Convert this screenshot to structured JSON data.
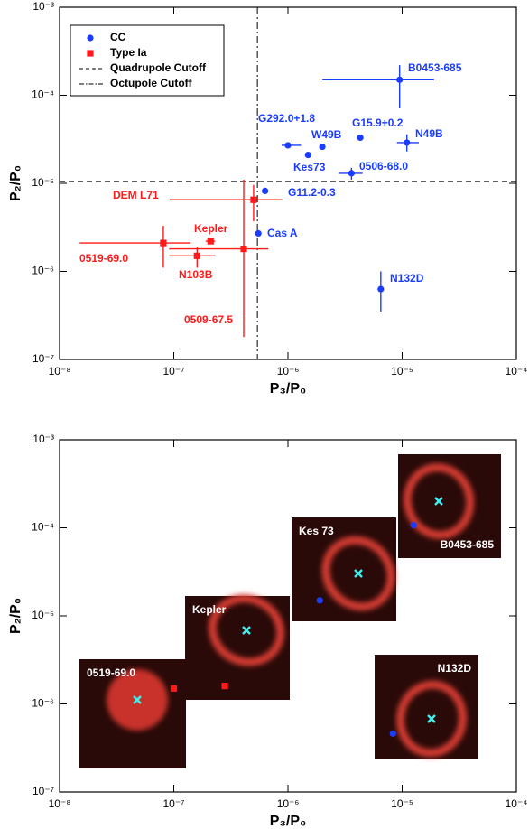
{
  "chart_data": [
    {
      "type": "scatter",
      "xlabel": "P₃/P₀",
      "ylabel": "P₂/P₀",
      "xscale": "log",
      "yscale": "log",
      "xlim": [
        1e-08,
        0.0001
      ],
      "ylim": [
        1e-07,
        0.001
      ],
      "xticks": [
        {
          "value": 1e-08,
          "label": "10⁻⁸"
        },
        {
          "value": 1e-07,
          "label": "10⁻⁷"
        },
        {
          "value": 1e-06,
          "label": "10⁻⁶"
        },
        {
          "value": 1e-05,
          "label": "10⁻⁵"
        },
        {
          "value": 0.0001,
          "label": "10⁻⁴"
        }
      ],
      "yticks": [
        {
          "value": 1e-07,
          "label": "10⁻⁷"
        },
        {
          "value": 1e-06,
          "label": "10⁻⁶"
        },
        {
          "value": 1e-05,
          "label": "10⁻⁵"
        },
        {
          "value": 0.0001,
          "label": "10⁻⁴"
        },
        {
          "value": 0.001,
          "label": "10⁻³"
        }
      ],
      "legend_loc": "upper left",
      "series": [
        {
          "name": "CC",
          "color": "#1a3cff",
          "marker": "circle",
          "labels": [
            "B0453-685",
            "G292.0+1.8",
            "W49B",
            "Kes73",
            "G15.9+0.2",
            "N49B",
            "0506-68.0",
            "G11.2-0.3",
            "Cas A",
            "N132D"
          ],
          "x": [
            9.5e-06,
            1e-06,
            2e-06,
            1.5e-06,
            4.3e-06,
            1.1e-05,
            3.6e-06,
            6.3e-07,
            5.5e-07,
            6.5e-06
          ],
          "y": [
            0.00015,
            2.7e-05,
            2.6e-05,
            2.1e-05,
            3.3e-05,
            2.9e-05,
            1.3e-05,
            8.2e-06,
            2.7e-06,
            6.3e-07
          ],
          "x_low": [
            2e-06,
            8.8e-07,
            null,
            null,
            null,
            9e-06,
            2.8e-06,
            null,
            null,
            null
          ],
          "x_high": [
            1.9e-05,
            1.3e-06,
            null,
            null,
            null,
            1.4e-05,
            4.5e-06,
            null,
            null,
            null
          ],
          "y_low": [
            7.1e-05,
            null,
            null,
            null,
            null,
            2.3e-05,
            1.1e-05,
            null,
            null,
            3.5e-07
          ],
          "y_high": [
            0.00022,
            null,
            null,
            null,
            null,
            3.6e-05,
            1.5e-05,
            null,
            null,
            1e-06
          ]
        },
        {
          "name": "Type Ia",
          "color": "#ff1a1a",
          "marker": "square",
          "labels": [
            "DEM L71",
            "Kepler",
            "0519-69.0",
            "N103B",
            "0509-67.5"
          ],
          "x": [
            5e-07,
            2.1e-07,
            8.1e-08,
            1.6e-07,
            4.1e-07
          ],
          "y": [
            6.5e-06,
            2.2e-06,
            2.1e-06,
            1.5e-06,
            1.8e-06
          ],
          "x_low": [
            9.2e-08,
            1.9e-07,
            1.5e-08,
            9.1e-08,
            9.1e-08
          ],
          "x_high": [
            8.9e-07,
            2.3e-07,
            1.4e-07,
            2.3e-07,
            6.7e-07
          ],
          "y_low": [
            3.7e-06,
            null,
            1.1e-06,
            1.1e-06,
            1.8e-07
          ],
          "y_high": [
            9.6e-06,
            null,
            3.3e-06,
            1.9e-06,
            1.1e-05
          ]
        }
      ],
      "reference_lines": [
        {
          "name": "Quadrupole Cutoff",
          "axis": "y",
          "value": 1.05e-05,
          "style": "dashed"
        },
        {
          "name": "Octupole Cutoff",
          "axis": "x",
          "value": 5.4e-07,
          "style": "dashdot"
        }
      ]
    },
    {
      "type": "scatter",
      "xlabel": "P₃/P₀",
      "ylabel": "P₂/P₀",
      "xscale": "log",
      "yscale": "log",
      "xlim": [
        1e-08,
        0.0001
      ],
      "ylim": [
        1e-07,
        0.001
      ],
      "xticks": [
        {
          "value": 1e-08,
          "label": "10⁻⁸"
        },
        {
          "value": 1e-07,
          "label": "10⁻⁷"
        },
        {
          "value": 1e-06,
          "label": "10⁻⁶"
        },
        {
          "value": 1e-05,
          "label": "10⁻⁵"
        },
        {
          "value": 0.0001,
          "label": "10⁻⁴"
        }
      ],
      "yticks": [
        {
          "value": 1e-07,
          "label": "10⁻⁷"
        },
        {
          "value": 1e-06,
          "label": "10⁻⁶"
        },
        {
          "value": 1e-05,
          "label": "10⁻⁵"
        },
        {
          "value": 0.0001,
          "label": "10⁻⁴"
        },
        {
          "value": 0.001,
          "label": "10⁻³"
        }
      ],
      "insets": [
        {
          "label": "0519-69.0",
          "marker": "square",
          "color": "#ff1a1a",
          "x": 1e-07,
          "y": 1.5e-06
        },
        {
          "label": "Kepler",
          "marker": "square",
          "color": "#ff1a1a",
          "x": 2.8e-07,
          "y": 1.6e-06
        },
        {
          "label": "Kes 73",
          "marker": "circle",
          "color": "#1a3cff",
          "x": 1.9e-06,
          "y": 1.5e-05
        },
        {
          "label": "B0453-685",
          "marker": "circle",
          "color": "#1a3cff",
          "x": 1.26e-05,
          "y": 0.000107
        },
        {
          "label": "N132D",
          "marker": "circle",
          "color": "#1a3cff",
          "x": 8.3e-06,
          "y": 4.6e-07
        }
      ]
    }
  ]
}
